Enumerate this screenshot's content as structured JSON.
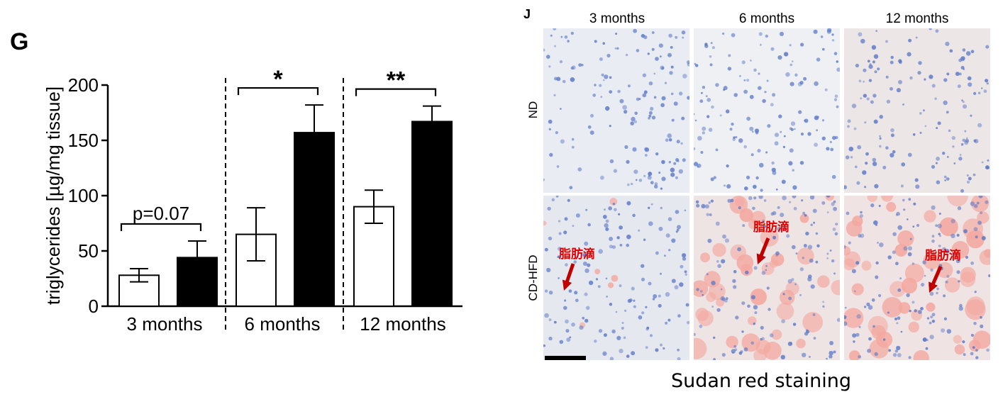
{
  "panel_g_letter": "G",
  "panel_j_letter": "J",
  "chart_data": {
    "type": "bar",
    "ylabel": "triglycerides [µg/mg tissue]",
    "ylim": [
      0,
      200
    ],
    "yticks": [
      0,
      50,
      100,
      150,
      200
    ],
    "groups": [
      "3 months",
      "6 months",
      "12 months"
    ],
    "series": [
      {
        "fill": "#ffffff",
        "values": [
          28,
          65,
          90
        ],
        "errors": [
          6,
          24,
          15
        ]
      },
      {
        "fill": "#000000",
        "values": [
          44,
          157,
          167
        ],
        "errors": [
          15,
          25,
          14
        ]
      }
    ],
    "significance": [
      "p=0.07",
      "*",
      "**"
    ],
    "group_dividers": "dashed",
    "grid": false
  },
  "micrographs": {
    "columns": [
      "3 months",
      "6 months",
      "12 months"
    ],
    "rows": [
      "ND",
      "CD-HFD"
    ],
    "fat_label": "脂肪滴",
    "arrow_color": "#c00000",
    "caption": "Sudan red staining"
  }
}
